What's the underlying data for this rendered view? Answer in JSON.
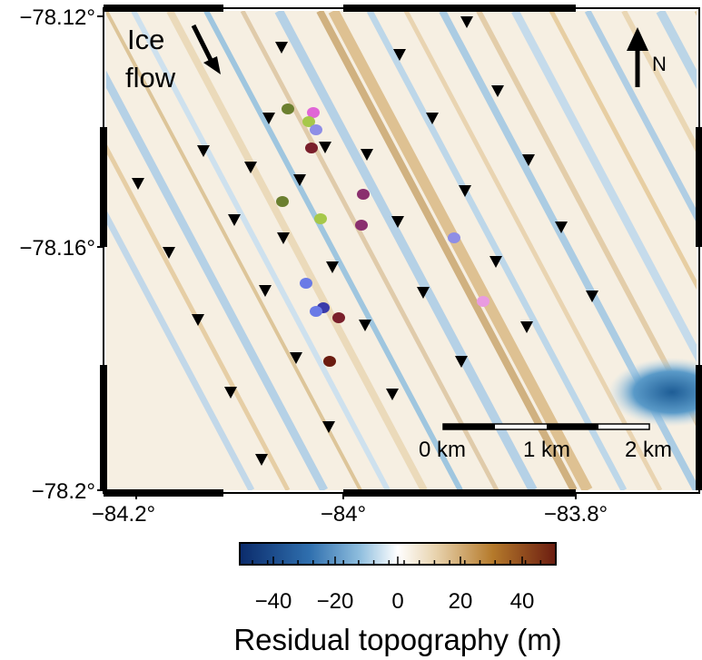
{
  "map": {
    "type": "geographic-map",
    "lat_labels": [
      "-78.12°",
      "-78.16°",
      "-78.2°"
    ],
    "lon_labels": [
      "-84.2°",
      "-84°",
      "-83.8°"
    ],
    "ice_flow_label_line1": "Ice",
    "ice_flow_label_line2": "flow",
    "north_label": "N",
    "scale_bar": {
      "labels": [
        "0 km",
        "1 km",
        "2 km"
      ]
    }
  },
  "colorbar": {
    "title": "Residual topography (m)",
    "ticks": [
      "-40",
      "-20",
      "0",
      "20",
      "40"
    ],
    "range": [
      -50,
      50
    ],
    "colors": [
      "#0b2b6b",
      "#2f6fae",
      "#8fbede",
      "#ffffff",
      "#e8d3ae",
      "#b57a2b",
      "#6b1c10"
    ]
  },
  "stations": {
    "symbol": "inverted-triangle",
    "color": "#000000"
  },
  "events": {
    "colors": [
      "#6b7f2f",
      "#e066d6",
      "#a6c84a",
      "#8e8ee6",
      "#7a1f2b",
      "#8a2f6e",
      "#6a7ae6",
      "#3a3aaa",
      "#6b1c10",
      "#e99be0"
    ]
  }
}
